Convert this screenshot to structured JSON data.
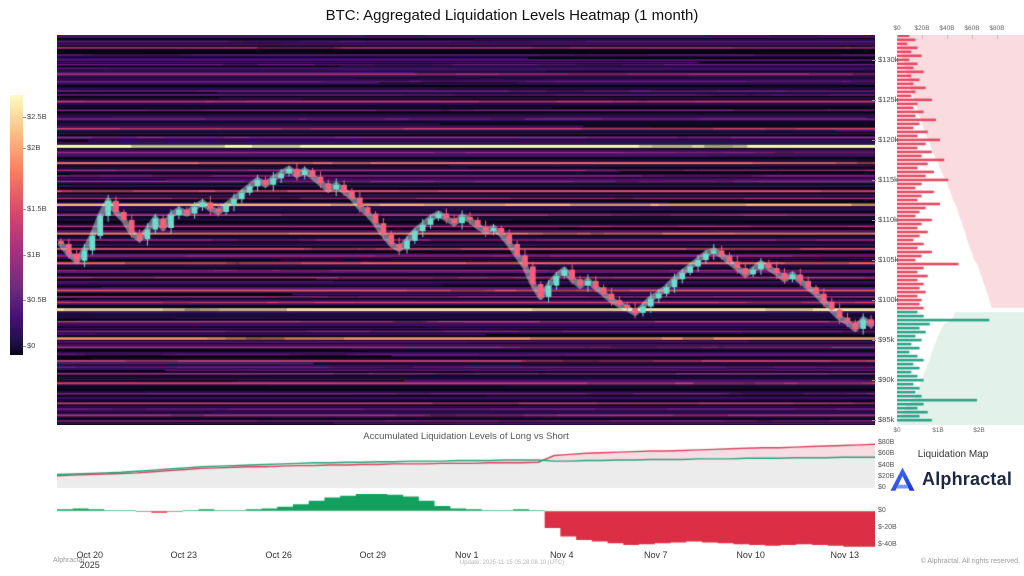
{
  "title": "BTC: Aggregated Liquidation Levels Heatmap (1 month)",
  "accumulated_title": "Accumulated Liquidation Levels of Long vs Short",
  "liquidation_map_label": "Liquidation Map",
  "branding": {
    "wordmark": "Alphractal",
    "logo_icon": "alphractal-a-mark",
    "accent_color": "#2b54e0"
  },
  "footer": {
    "left": "Alphractal",
    "center": "Update: 2025-11-15 05:28:08.10 (UTC)",
    "right": "© Alphractal. All rights reserved."
  },
  "colorbar": {
    "ticks": [
      {
        "label": "$2.5B",
        "f": 0.085
      },
      {
        "label": "$2B",
        "f": 0.205
      },
      {
        "label": "$1.5B",
        "f": 0.44
      },
      {
        "label": "$1B",
        "f": 0.615
      },
      {
        "label": "$0.5B",
        "f": 0.79
      },
      {
        "label": "$0",
        "f": 0.965
      }
    ]
  },
  "price_axis": {
    "min_k": 84.4,
    "max_k": 133.1,
    "ticks": [
      130,
      125,
      120,
      115,
      110,
      105,
      100,
      95,
      90,
      85
    ],
    "suffix": "k",
    "prefix": "$"
  },
  "date_axis": {
    "ticks": [
      {
        "label": "Oct 20",
        "sub": "2025",
        "f": 0.04
      },
      {
        "label": "Oct 23",
        "f": 0.155
      },
      {
        "label": "Oct 26",
        "f": 0.271
      },
      {
        "label": "Oct 29",
        "f": 0.386
      },
      {
        "label": "Nov 1",
        "f": 0.501
      },
      {
        "label": "Nov 4",
        "f": 0.617
      },
      {
        "label": "Nov 7",
        "f": 0.732
      },
      {
        "label": "Nov 10",
        "f": 0.848
      },
      {
        "label": "Nov 13",
        "f": 0.963
      }
    ]
  },
  "liqmap_axes": {
    "top": [
      "$0",
      "$20B",
      "$40B",
      "$60B",
      "$80B"
    ],
    "bottom": [
      "$0",
      "$1B",
      "$2B"
    ]
  },
  "accum_axis": {
    "ticks": [
      {
        "label": "$80B",
        "v": 80
      },
      {
        "label": "$60B",
        "v": 60
      },
      {
        "label": "$40B",
        "v": 40
      },
      {
        "label": "$20B",
        "v": 20
      },
      {
        "label": "$0",
        "v": 0
      }
    ]
  },
  "delta_axis": {
    "ticks": [
      {
        "label": "$0",
        "v": 0
      },
      {
        "label": "$-20B",
        "v": -20
      },
      {
        "label": "$-40B",
        "v": -40
      }
    ]
  },
  "chart_data": [
    {
      "type": "heatmap",
      "name": "liquidation_heatmap",
      "title": "BTC: Aggregated Liquidation Levels Heatmap (1 month)",
      "price_range_k": [
        84.4,
        133.1
      ],
      "colorbar_range_B": [
        0,
        2.5
      ],
      "bands": [
        [
          119.2,
          1.0,
          3
        ],
        [
          98.8,
          0.97,
          3
        ],
        [
          111.9,
          0.9,
          2.5
        ],
        [
          95.2,
          0.85,
          2.5
        ],
        [
          117.1,
          0.78,
          2
        ],
        [
          108.3,
          0.8,
          2
        ],
        [
          104.6,
          0.76,
          2
        ],
        [
          101.2,
          0.72,
          2
        ],
        [
          113.6,
          0.7,
          2
        ],
        [
          106.4,
          0.66,
          2
        ],
        [
          121.4,
          0.64,
          2
        ],
        [
          124.8,
          0.58,
          2
        ],
        [
          99.7,
          0.66,
          1.5
        ],
        [
          128.2,
          0.52,
          2
        ],
        [
          131.5,
          0.48,
          2
        ],
        [
          92.4,
          0.6,
          2
        ],
        [
          89.6,
          0.62,
          2
        ],
        [
          87.1,
          0.56,
          2
        ],
        [
          85.6,
          0.52,
          2
        ],
        [
          90.8,
          0.5,
          1.5
        ],
        [
          94.1,
          0.52,
          1.5
        ],
        [
          97.3,
          0.6,
          1.5
        ],
        [
          102.8,
          0.58,
          1.5
        ],
        [
          105.5,
          0.54,
          1.5
        ],
        [
          107.5,
          0.5,
          1.5
        ],
        [
          109.2,
          0.56,
          1.5
        ],
        [
          110.6,
          0.6,
          1.5
        ],
        [
          112.7,
          0.54,
          1.5
        ],
        [
          114.8,
          0.5,
          1.5
        ],
        [
          116.2,
          0.52,
          1.5
        ],
        [
          118.4,
          0.5,
          1.5
        ],
        [
          120.3,
          0.48,
          1.5
        ],
        [
          122.6,
          0.44,
          1.5
        ],
        [
          123.7,
          0.42,
          1.5
        ],
        [
          126.1,
          0.4,
          1.5
        ],
        [
          127.3,
          0.38,
          1.5
        ],
        [
          129.4,
          0.36,
          1.5
        ],
        [
          130.6,
          0.34,
          1.5
        ],
        [
          132.3,
          0.32,
          1.5
        ],
        [
          86.4,
          0.4,
          1.5
        ],
        [
          88.3,
          0.42,
          1.5
        ],
        [
          91.6,
          0.38,
          1.5
        ],
        [
          93.2,
          0.36,
          1.5
        ],
        [
          96.1,
          0.42,
          1.5
        ],
        [
          100.4,
          0.5,
          1.5
        ],
        [
          103.7,
          0.46,
          1.5
        ],
        [
          115.5,
          0.44,
          1.5
        ],
        [
          125.6,
          0.36,
          1.5
        ],
        [
          84.9,
          0.45,
          1.5
        ],
        [
          133.0,
          0.3,
          1.5
        ]
      ]
    },
    {
      "type": "line",
      "name": "btc_price",
      "style": "candlestick",
      "x_start": "Oct 20 2025",
      "x_end": "Nov 14 2025",
      "interval": "6h",
      "unit": "USD thousands",
      "closes": [
        107.0,
        105.8,
        104.9,
        106.2,
        108.0,
        110.5,
        112.4,
        111.0,
        110.0,
        108.4,
        107.6,
        108.8,
        110.2,
        109.0,
        110.6,
        111.3,
        110.8,
        111.6,
        112.2,
        111.4,
        111.0,
        111.8,
        112.6,
        113.4,
        114.2,
        115.0,
        114.4,
        115.2,
        115.8,
        116.4,
        115.6,
        116.2,
        115.4,
        114.6,
        113.8,
        114.4,
        113.6,
        112.8,
        111.6,
        110.8,
        109.6,
        108.2,
        107.0,
        106.4,
        107.4,
        108.6,
        109.4,
        110.2,
        110.8,
        110.2,
        109.6,
        110.4,
        110.0,
        109.2,
        108.6,
        109.0,
        108.2,
        107.0,
        105.6,
        104.2,
        102.0,
        100.4,
        101.8,
        103.0,
        103.8,
        102.6,
        101.8,
        102.4,
        101.6,
        100.8,
        100.0,
        99.4,
        99.0,
        98.4,
        99.2,
        100.2,
        100.8,
        101.6,
        102.6,
        103.4,
        104.2,
        105.0,
        105.8,
        106.2,
        105.6,
        104.8,
        104.0,
        103.2,
        103.8,
        104.6,
        104.0,
        103.4,
        102.6,
        103.2,
        102.4,
        101.6,
        100.8,
        99.8,
        98.8,
        97.8,
        97.2,
        96.4,
        97.6,
        96.9
      ]
    },
    {
      "type": "bar",
      "name": "liquidation_map",
      "orientation": "horizontal",
      "bar_axis_max_B": 2,
      "cum_axis_max_B": 80,
      "above_color": "#e5485f",
      "below_color": "#2ba186",
      "above": [
        [
          133,
          0.3
        ],
        [
          132.5,
          0.45
        ],
        [
          132,
          0.25
        ],
        [
          131.5,
          0.5
        ],
        [
          131,
          0.35
        ],
        [
          130.5,
          0.6
        ],
        [
          130,
          0.3
        ],
        [
          129.5,
          0.5
        ],
        [
          129,
          0.4
        ],
        [
          128.5,
          0.65
        ],
        [
          128,
          0.35
        ],
        [
          127.5,
          0.55
        ],
        [
          127,
          0.4
        ],
        [
          126.5,
          0.7
        ],
        [
          126,
          0.45
        ],
        [
          125.5,
          0.35
        ],
        [
          125,
          0.85
        ],
        [
          124.5,
          0.5
        ],
        [
          124,
          0.4
        ],
        [
          123.5,
          0.65
        ],
        [
          123,
          0.45
        ],
        [
          122.5,
          0.95
        ],
        [
          122,
          0.55
        ],
        [
          121.5,
          0.4
        ],
        [
          121,
          0.75
        ],
        [
          120.5,
          0.5
        ],
        [
          120,
          1.05
        ],
        [
          119.5,
          0.7
        ],
        [
          119,
          0.5
        ],
        [
          118.5,
          0.85
        ],
        [
          118,
          0.6
        ],
        [
          117.5,
          1.15
        ],
        [
          117,
          0.75
        ],
        [
          116.5,
          0.5
        ],
        [
          116,
          0.9
        ],
        [
          115.5,
          0.7
        ],
        [
          115,
          1.25
        ],
        [
          114.5,
          0.6
        ],
        [
          114,
          0.45
        ],
        [
          113.5,
          0.9
        ],
        [
          113,
          0.6
        ],
        [
          112.5,
          0.5
        ],
        [
          112,
          1.05
        ],
        [
          111.5,
          0.7
        ],
        [
          111,
          0.55
        ],
        [
          110.5,
          0.45
        ],
        [
          110,
          0.85
        ],
        [
          109.5,
          0.6
        ],
        [
          109,
          0.5
        ],
        [
          108.5,
          0.75
        ],
        [
          108,
          0.55
        ],
        [
          107.5,
          0.4
        ],
        [
          107,
          0.65
        ],
        [
          106.5,
          0.5
        ],
        [
          106,
          0.85
        ],
        [
          105.5,
          0.6
        ],
        [
          105,
          0.45
        ],
        [
          104.5,
          1.5
        ],
        [
          104,
          0.65
        ],
        [
          103.5,
          0.5
        ],
        [
          103,
          0.75
        ],
        [
          102.5,
          0.5
        ],
        [
          102,
          0.65
        ],
        [
          101.5,
          0.55
        ],
        [
          101,
          0.7
        ],
        [
          100.5,
          0.5
        ],
        [
          100,
          0.6
        ],
        [
          99.5,
          0.55
        ],
        [
          99,
          0.65
        ]
      ],
      "below": [
        [
          98.5,
          0.5
        ],
        [
          98,
          0.65
        ],
        [
          97.5,
          2.25
        ],
        [
          97,
          0.8
        ],
        [
          96.5,
          0.55
        ],
        [
          96,
          0.7
        ],
        [
          95.5,
          0.45
        ],
        [
          95,
          0.6
        ],
        [
          94.5,
          0.35
        ],
        [
          94,
          0.55
        ],
        [
          93.5,
          0.3
        ],
        [
          93,
          0.5
        ],
        [
          92.5,
          0.65
        ],
        [
          92,
          0.4
        ],
        [
          91.5,
          0.55
        ],
        [
          91,
          0.35
        ],
        [
          90.5,
          0.5
        ],
        [
          90,
          0.65
        ],
        [
          89.5,
          0.4
        ],
        [
          89,
          0.55
        ],
        [
          88.5,
          0.45
        ],
        [
          88,
          0.6
        ],
        [
          87.5,
          1.95
        ],
        [
          87,
          0.65
        ],
        [
          86.5,
          0.5
        ],
        [
          86,
          0.75
        ],
        [
          85.5,
          0.55
        ],
        [
          85,
          0.85
        ]
      ]
    },
    {
      "type": "area",
      "name": "accumulated_long_short",
      "title": "Accumulated Liquidation Levels of Long vs Short",
      "ylim_B": [
        0,
        80
      ],
      "series": [
        {
          "name": "Short",
          "color": "#d6455d",
          "values": [
            22,
            23,
            24,
            25,
            26,
            27,
            29,
            31,
            33,
            35,
            36,
            37,
            38,
            38,
            39,
            40,
            40,
            41,
            41,
            42,
            42,
            43,
            43,
            43,
            44,
            44,
            44,
            45,
            45,
            45,
            46,
            58,
            60,
            62,
            63,
            64,
            65,
            66,
            66,
            67,
            68,
            69,
            70,
            71,
            72,
            72,
            73,
            74,
            75,
            76,
            77,
            78
          ]
        },
        {
          "name": "Long",
          "color": "#2fa07c",
          "values": [
            24,
            25,
            26,
            27,
            28,
            30,
            32,
            34,
            36,
            38,
            39,
            40,
            41,
            42,
            43,
            44,
            45,
            45,
            46,
            46,
            47,
            47,
            48,
            48,
            48,
            49,
            49,
            49,
            50,
            50,
            50,
            48,
            48,
            49,
            49,
            50,
            50,
            51,
            51,
            51,
            52,
            52,
            52,
            53,
            53,
            53,
            54,
            54,
            54,
            55,
            55,
            55
          ]
        }
      ]
    },
    {
      "type": "area",
      "name": "long_short_delta",
      "ylim_B": [
        -45,
        25
      ],
      "positive_color": "#12a05e",
      "negative_color": "#dc2e45",
      "values": [
        2,
        3,
        2,
        1,
        1,
        -1,
        -2,
        -1,
        1,
        2,
        1,
        1,
        2,
        3,
        5,
        8,
        12,
        16,
        18,
        20,
        20,
        19,
        17,
        12,
        6,
        3,
        2,
        1,
        1,
        2,
        1,
        -20,
        -30,
        -34,
        -36,
        -38,
        -40,
        -39,
        -38,
        -37,
        -36,
        -37,
        -38,
        -39,
        -40,
        -41,
        -40,
        -39,
        -40,
        -41,
        -42,
        -42
      ]
    }
  ]
}
